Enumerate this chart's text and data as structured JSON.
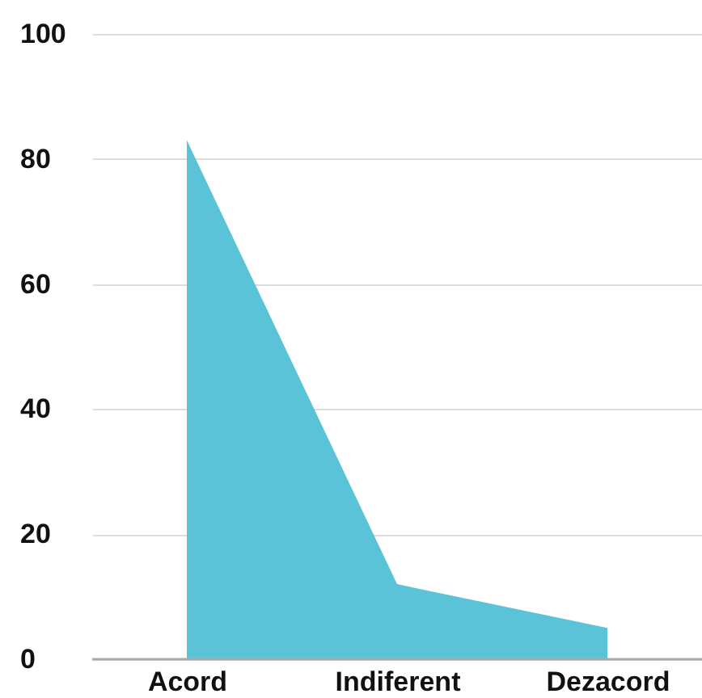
{
  "chart_data": {
    "type": "area",
    "categories": [
      "Acord",
      "Indiferent",
      "Dezacord"
    ],
    "values": [
      83,
      12,
      5
    ],
    "color": "#5bc3d8",
    "ylim": [
      0,
      100
    ],
    "yticks": [
      0,
      20,
      40,
      60,
      80,
      100
    ],
    "grid": "y"
  }
}
